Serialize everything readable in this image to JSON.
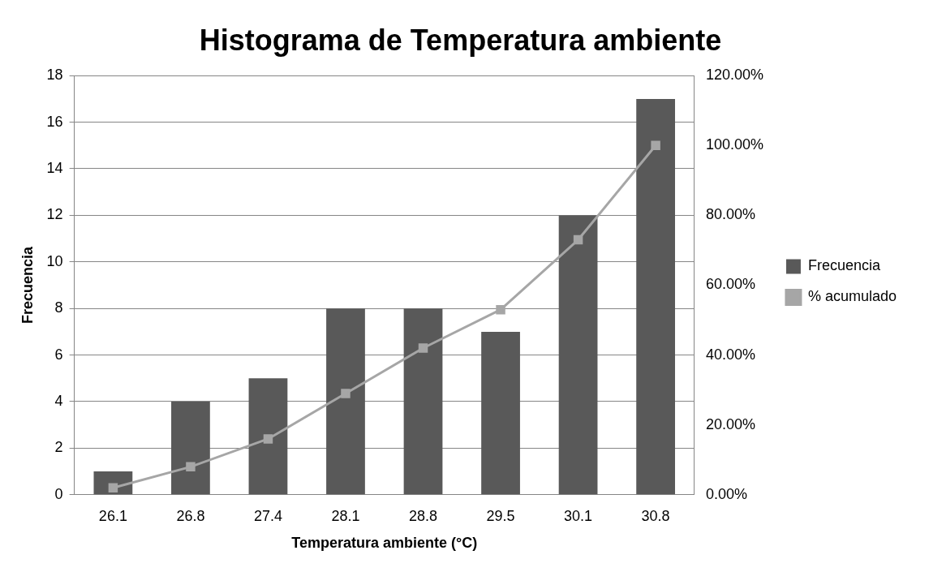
{
  "chart_data": {
    "type": "bar",
    "title": "Histograma de Temperatura ambiente",
    "xlabel": "Temperatura ambiente (°C)",
    "ylabel": "Frecuencia",
    "categories": [
      "26.1",
      "26.8",
      "27.4",
      "28.1",
      "28.8",
      "29.5",
      "30.1",
      "30.8"
    ],
    "series": [
      {
        "name": "Frecuencia",
        "color": "#595959",
        "values": [
          1,
          4,
          5,
          8,
          8,
          7,
          12,
          17
        ]
      },
      {
        "name": "% acumulado",
        "type": "line",
        "axis": "y2",
        "color": "#a6a6a6",
        "marker": "square",
        "values": [
          2,
          8,
          16,
          29,
          42,
          53,
          73,
          100
        ]
      }
    ],
    "ylim": [
      0,
      18
    ],
    "yticks": [
      0,
      2,
      4,
      6,
      8,
      10,
      12,
      14,
      16,
      18
    ],
    "y2lim": [
      0,
      120
    ],
    "y2ticks": [
      {
        "value": 0,
        "label": "0.00%"
      },
      {
        "value": 20,
        "label": "20.00%"
      },
      {
        "value": 40,
        "label": "40.00%"
      },
      {
        "value": 60,
        "label": "60.00%"
      },
      {
        "value": 80,
        "label": "80.00%"
      },
      {
        "value": 100,
        "label": "100.00%"
      },
      {
        "value": 120,
        "label": "120.00%"
      }
    ],
    "grid": "y",
    "legend": "right"
  }
}
